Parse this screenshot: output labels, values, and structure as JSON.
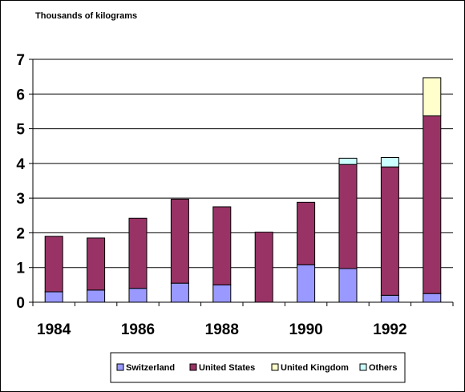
{
  "chart_data": {
    "type": "bar",
    "stacked": true,
    "unit_label": "Thousands of kilograms",
    "x": [
      1984,
      1985,
      1986,
      1987,
      1988,
      1989,
      1990,
      1991,
      1992,
      1993
    ],
    "x_tick_labels": [
      "1984",
      "1986",
      "1988",
      "1990",
      "1992"
    ],
    "y_ticks": [
      0,
      1,
      2,
      3,
      4,
      5,
      6,
      7
    ],
    "ylim": [
      0,
      7
    ],
    "grid": true,
    "legend_position": "bottom",
    "series": [
      {
        "name": "Switzerland",
        "color": "#9999ff",
        "values": [
          0.3,
          0.35,
          0.4,
          0.55,
          0.5,
          0.0,
          1.08,
          0.97,
          0.2,
          0.25
        ]
      },
      {
        "name": "United States",
        "color": "#993366",
        "values": [
          1.6,
          1.5,
          2.02,
          2.42,
          2.25,
          2.02,
          1.8,
          3.0,
          3.7,
          5.12
        ]
      },
      {
        "name": "United Kingdom",
        "color": "#ffffcc",
        "values": [
          0,
          0,
          0,
          0,
          0,
          0,
          0,
          0,
          0,
          1.1
        ]
      },
      {
        "name": "Others",
        "color": "#ccffff",
        "values": [
          0,
          0,
          0,
          0,
          0,
          0,
          0,
          0.18,
          0.27,
          0
        ]
      }
    ]
  }
}
